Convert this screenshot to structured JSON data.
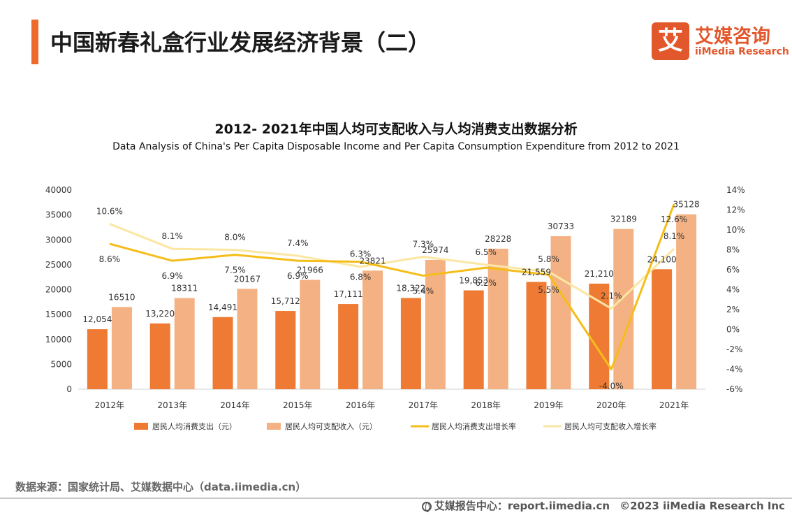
{
  "header": {
    "title": "中国新春礼盒行业发展经济背景（二）"
  },
  "logo": {
    "mark": "艾",
    "name_cn": "艾媒咨询",
    "name_en": "iiMedia Research"
  },
  "chart_data": {
    "type": "bar",
    "title": "2012- 2021年中国人均可支配收入与人均消费支出数据分析",
    "subtitle": "Data Analysis of China's Per Capita Disposable Income and Per Capita Consumption Expenditure from 2012 to 2021",
    "categories": [
      "2012年",
      "2013年",
      "2014年",
      "2015年",
      "2016年",
      "2017年",
      "2018年",
      "2019年",
      "2020年",
      "2021年"
    ],
    "y_left": {
      "min": 0,
      "max": 40000,
      "ticks": [
        "0",
        "5000",
        "10000",
        "15000",
        "20000",
        "25000",
        "30000",
        "35000",
        "40000"
      ]
    },
    "y_right": {
      "min": -6,
      "max": 14,
      "ticks": [
        "-6%",
        "-4%",
        "-2%",
        "0%",
        "2%",
        "4%",
        "6%",
        "8%",
        "10%",
        "12%",
        "14%"
      ]
    },
    "series": [
      {
        "name": "居民人均消费支出（元）",
        "type": "bar",
        "color": "#ee7a33",
        "axis": "left",
        "values": [
          12054,
          13220,
          14491,
          15712,
          17111,
          18322,
          19853,
          21559,
          21210,
          24100
        ],
        "labels": [
          "12,054",
          "13,220",
          "14,491",
          "15,712",
          "17,111",
          "18,322",
          "19,853",
          "21,559",
          "21,210",
          "24,100"
        ]
      },
      {
        "name": "居民人均可支配收入（元）",
        "type": "bar",
        "color": "#f4b183",
        "axis": "left",
        "values": [
          16510,
          18311,
          20167,
          21966,
          23821,
          25974,
          28228,
          30733,
          32189,
          35128
        ],
        "labels": [
          "16510",
          "18311",
          "20167",
          "21966",
          "23821",
          "25974",
          "28228",
          "30733",
          "32189",
          "35128"
        ]
      },
      {
        "name": "居民人均消费支出增长率",
        "type": "line",
        "color": "#f5bd1a",
        "axis": "right",
        "values": [
          8.6,
          6.9,
          7.5,
          6.9,
          6.8,
          5.4,
          6.2,
          5.5,
          -4.0,
          12.6
        ],
        "labels": [
          "8.6%",
          "6.9%",
          "7.5%",
          "6.9%",
          "6.8%",
          "5.4%",
          "6.2%",
          "5.5%",
          "-4.0%",
          "12.6%"
        ]
      },
      {
        "name": "居民人均可支配收入增长率",
        "type": "line",
        "color": "#fbe6a2",
        "axis": "right",
        "values": [
          10.6,
          8.1,
          8.0,
          7.4,
          6.3,
          7.3,
          6.5,
          5.8,
          2.1,
          8.1
        ],
        "labels": [
          "10.6%",
          "8.1%",
          "8.0%",
          "7.4%",
          "6.3%",
          "7.3%",
          "6.5%",
          "5.8%",
          "2.1%",
          "8.1%"
        ]
      }
    ],
    "legend_position": "bottom"
  },
  "footer": {
    "source": "数据来源：国家统计局、艾媒数据中心（data.iimedia.cn）",
    "site": "艾媒报告中心：report.iimedia.cn",
    "copyright": "©2023  iiMedia Research  Inc"
  }
}
